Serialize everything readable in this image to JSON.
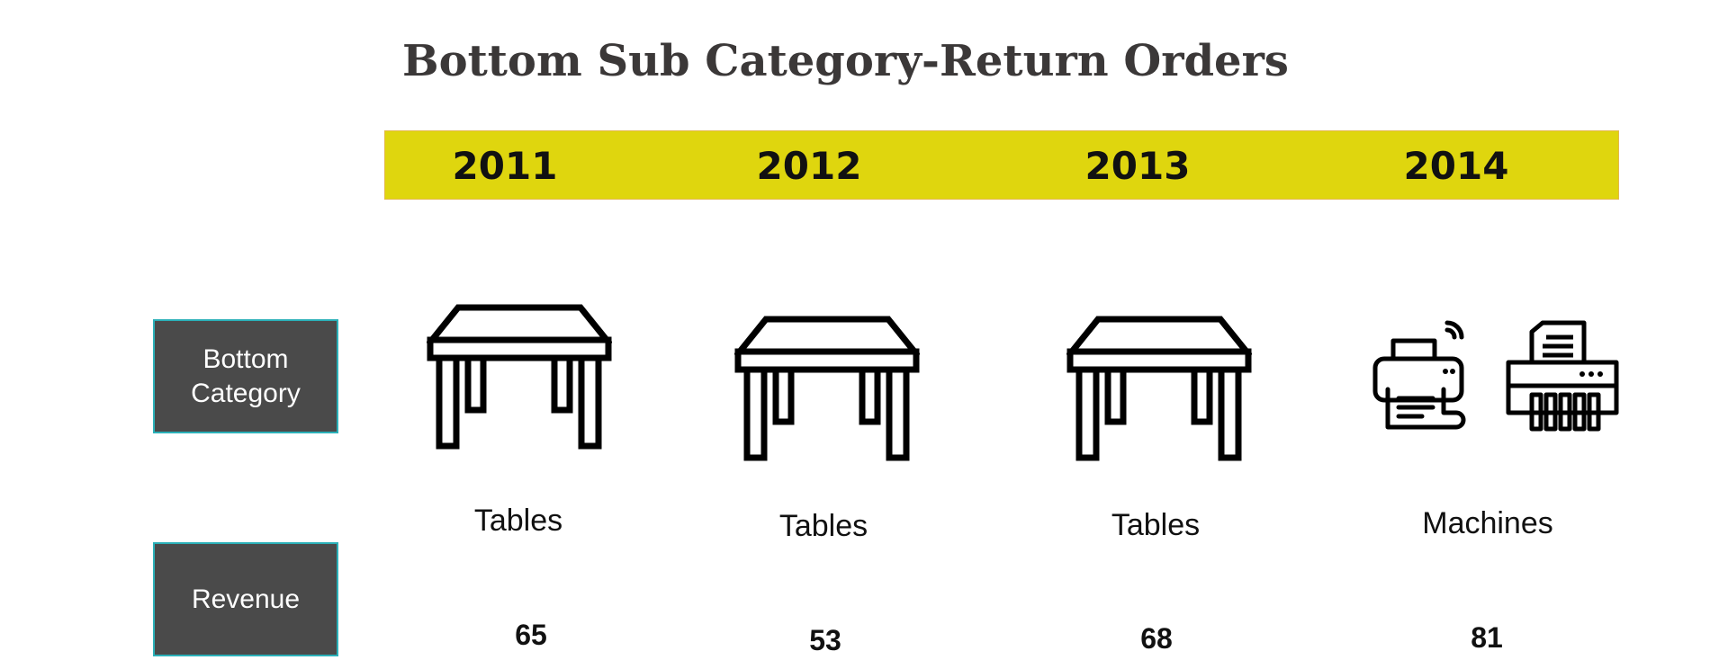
{
  "title": "Bottom Sub Category-Return Orders",
  "colors": {
    "year_bar": "#dfd60e",
    "label_box": "#4a4a4a",
    "label_border": "#2ab0b8",
    "title_text": "#3b3838"
  },
  "years": [
    "2011",
    "2012",
    "2013",
    "2014"
  ],
  "row_labels": {
    "category": "Bottom Category",
    "revenue": "Revenue"
  },
  "columns": [
    {
      "year": "2011",
      "category": "Tables",
      "revenue": "65",
      "icon": "table-icon"
    },
    {
      "year": "2012",
      "category": "Tables",
      "revenue": "53",
      "icon": "table-icon"
    },
    {
      "year": "2013",
      "category": "Tables",
      "revenue": "68",
      "icon": "table-icon"
    },
    {
      "year": "2014",
      "category": "Machines",
      "revenue": "81",
      "icons": [
        "printer-icon",
        "shredder-icon"
      ]
    }
  ]
}
